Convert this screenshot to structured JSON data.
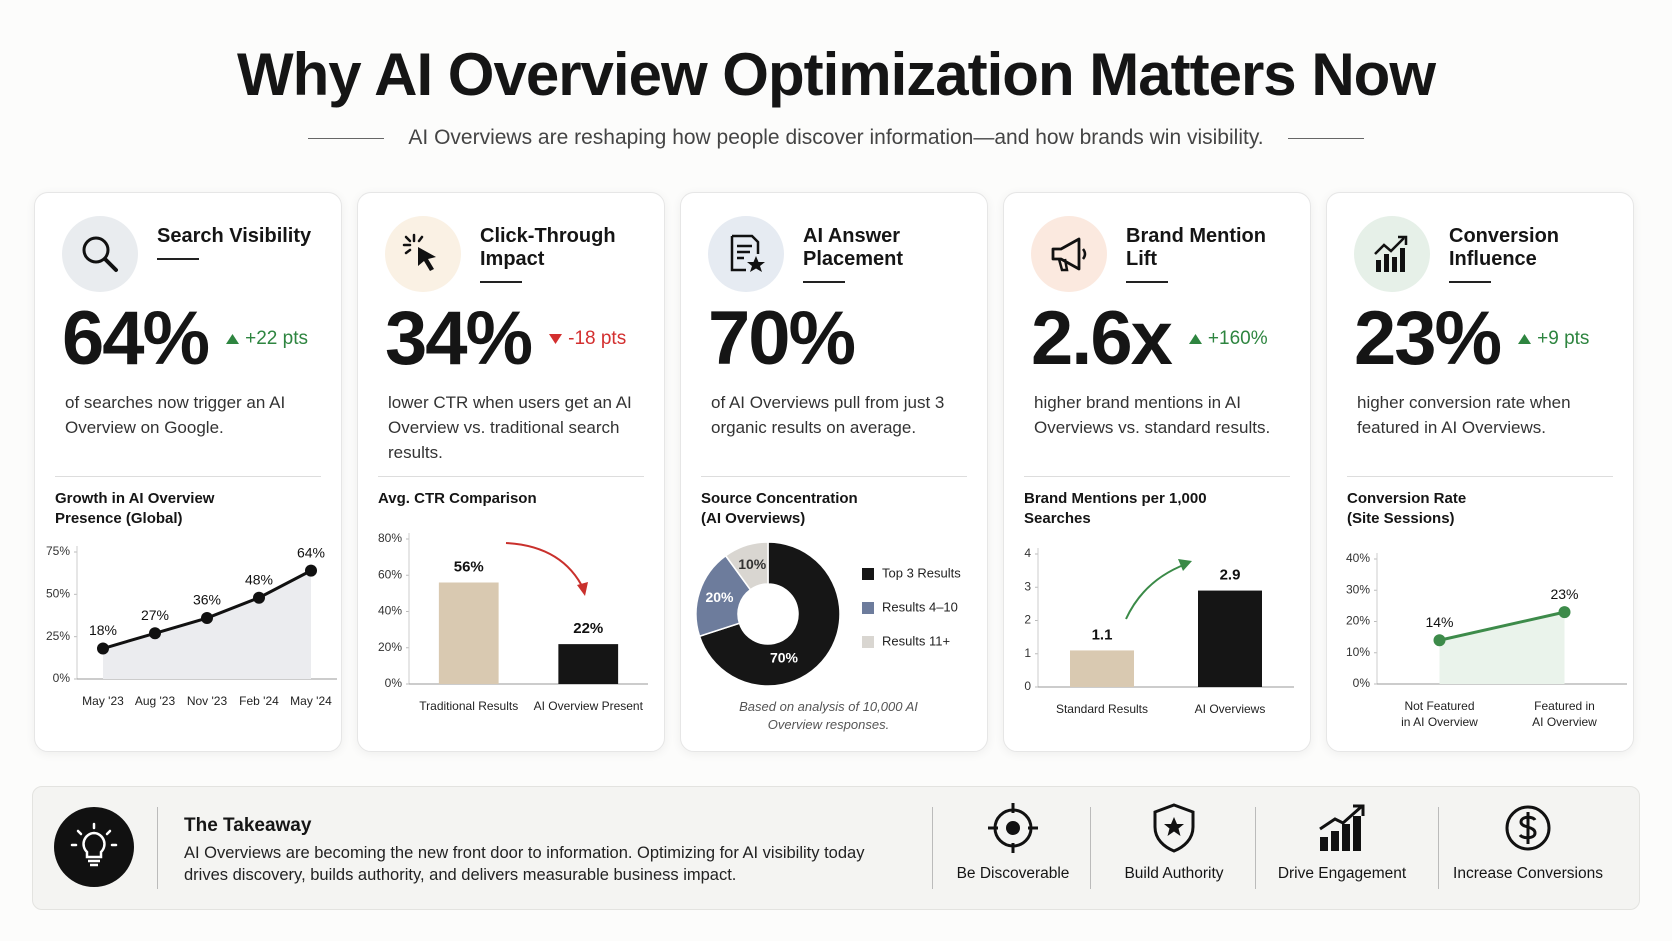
{
  "header": {
    "title": "Why AI Overview Optimization Matters Now",
    "subtitle": "AI Overviews are reshaping how people discover information—and how brands win visibility."
  },
  "cards": [
    {
      "title": "Search Visibility",
      "stat": "64%",
      "change": "+22 pts",
      "description": "of searches now trigger an AI Overview on Google."
    },
    {
      "title": "Click-Through Impact",
      "stat": "34%",
      "change": "-18 pts",
      "description": "lower CTR when users get an AI Overview vs. traditional search results."
    },
    {
      "title": "AI Answer Placement",
      "stat": "70%",
      "description": "of AI Overviews pull from just 3 organic results on average."
    },
    {
      "title": "Brand Mention Lift",
      "stat": "2.6x",
      "change": "+160%",
      "description": "higher brand mentions in AI Overviews vs. standard results."
    },
    {
      "title": "Conversion Influence",
      "stat": "23%",
      "change": "+9 pts",
      "description": "higher conversion rate when featured in AI Overviews."
    }
  ],
  "chart_data": [
    {
      "type": "line",
      "title": "Growth in AI Overview Presence (Global)",
      "categories": [
        "May '23",
        "Aug '23",
        "Nov '23",
        "Feb '24",
        "May '24"
      ],
      "values": [
        18,
        27,
        36,
        48,
        64
      ],
      "value_labels": [
        "18%",
        "27%",
        "36%",
        "48%",
        "64%"
      ],
      "color": "#111111",
      "area_color": "#ebecef",
      "ylim": [
        0,
        75
      ],
      "yticks": [
        {
          "value": 0,
          "label": "0%"
        },
        {
          "value": 25,
          "label": "25%"
        },
        {
          "value": 50,
          "label": "50%"
        },
        {
          "value": 75,
          "label": "75%"
        }
      ]
    },
    {
      "type": "bar",
      "title": "Avg. CTR Comparison",
      "categories": [
        "Traditional Results",
        "AI Overview Present"
      ],
      "values": [
        56,
        22
      ],
      "value_labels": [
        "56%",
        "22%"
      ],
      "colors": [
        "#d9c9b1",
        "#151515"
      ],
      "ylim": [
        0,
        80
      ],
      "yticks": [
        {
          "value": 0,
          "label": "0%"
        },
        {
          "value": 20,
          "label": "20%"
        },
        {
          "value": 40,
          "label": "40%"
        },
        {
          "value": 60,
          "label": "60%"
        },
        {
          "value": 80,
          "label": "80%"
        }
      ]
    },
    {
      "type": "pie",
      "title": "Source Concentration (AI Overviews)",
      "categories": [
        "Top 3 Results",
        "Results 4–10",
        "Results 11+"
      ],
      "values": [
        70,
        20,
        10
      ],
      "value_labels": [
        "70%",
        "20%",
        "10%"
      ],
      "colors": [
        "#161616",
        "#6d7c9c",
        "#d9d6d1"
      ],
      "note": "Based on analysis of 10,000 AI Overview responses."
    },
    {
      "type": "bar",
      "title": "Brand Mentions per 1,000 Searches",
      "categories": [
        "Standard Results",
        "AI Overviews"
      ],
      "values": [
        1.1,
        2.9
      ],
      "colors": [
        "#d9c9b1",
        "#151515"
      ],
      "ylim": [
        0,
        4
      ],
      "yticks": [
        0,
        1,
        2,
        3,
        4
      ]
    },
    {
      "type": "line",
      "title": "Conversion Rate (Site Sessions)",
      "categories": [
        "Not Featured in AI Overview",
        "Featured in AI Overview"
      ],
      "values": [
        14,
        23
      ],
      "value_labels": [
        "14%",
        "23%"
      ],
      "color": "#3d8b4a",
      "area_color": "#eaf3eb",
      "ylim": [
        0,
        40
      ],
      "yticks": [
        {
          "value": 0,
          "label": "0%"
        },
        {
          "value": 10,
          "label": "10%"
        },
        {
          "value": 20,
          "label": "20%"
        },
        {
          "value": 30,
          "label": "30%"
        },
        {
          "value": 40,
          "label": "40%"
        }
      ]
    }
  ],
  "takeaway": {
    "title": "The Takeaway",
    "text": "AI Overviews are becoming the new front door to information. Optimizing for AI visibility today drives discovery, builds authority, and delivers measurable business impact.",
    "pillars": [
      "Be Discoverable",
      "Build Authority",
      "Drive Engagement",
      "Increase Conversions"
    ]
  }
}
